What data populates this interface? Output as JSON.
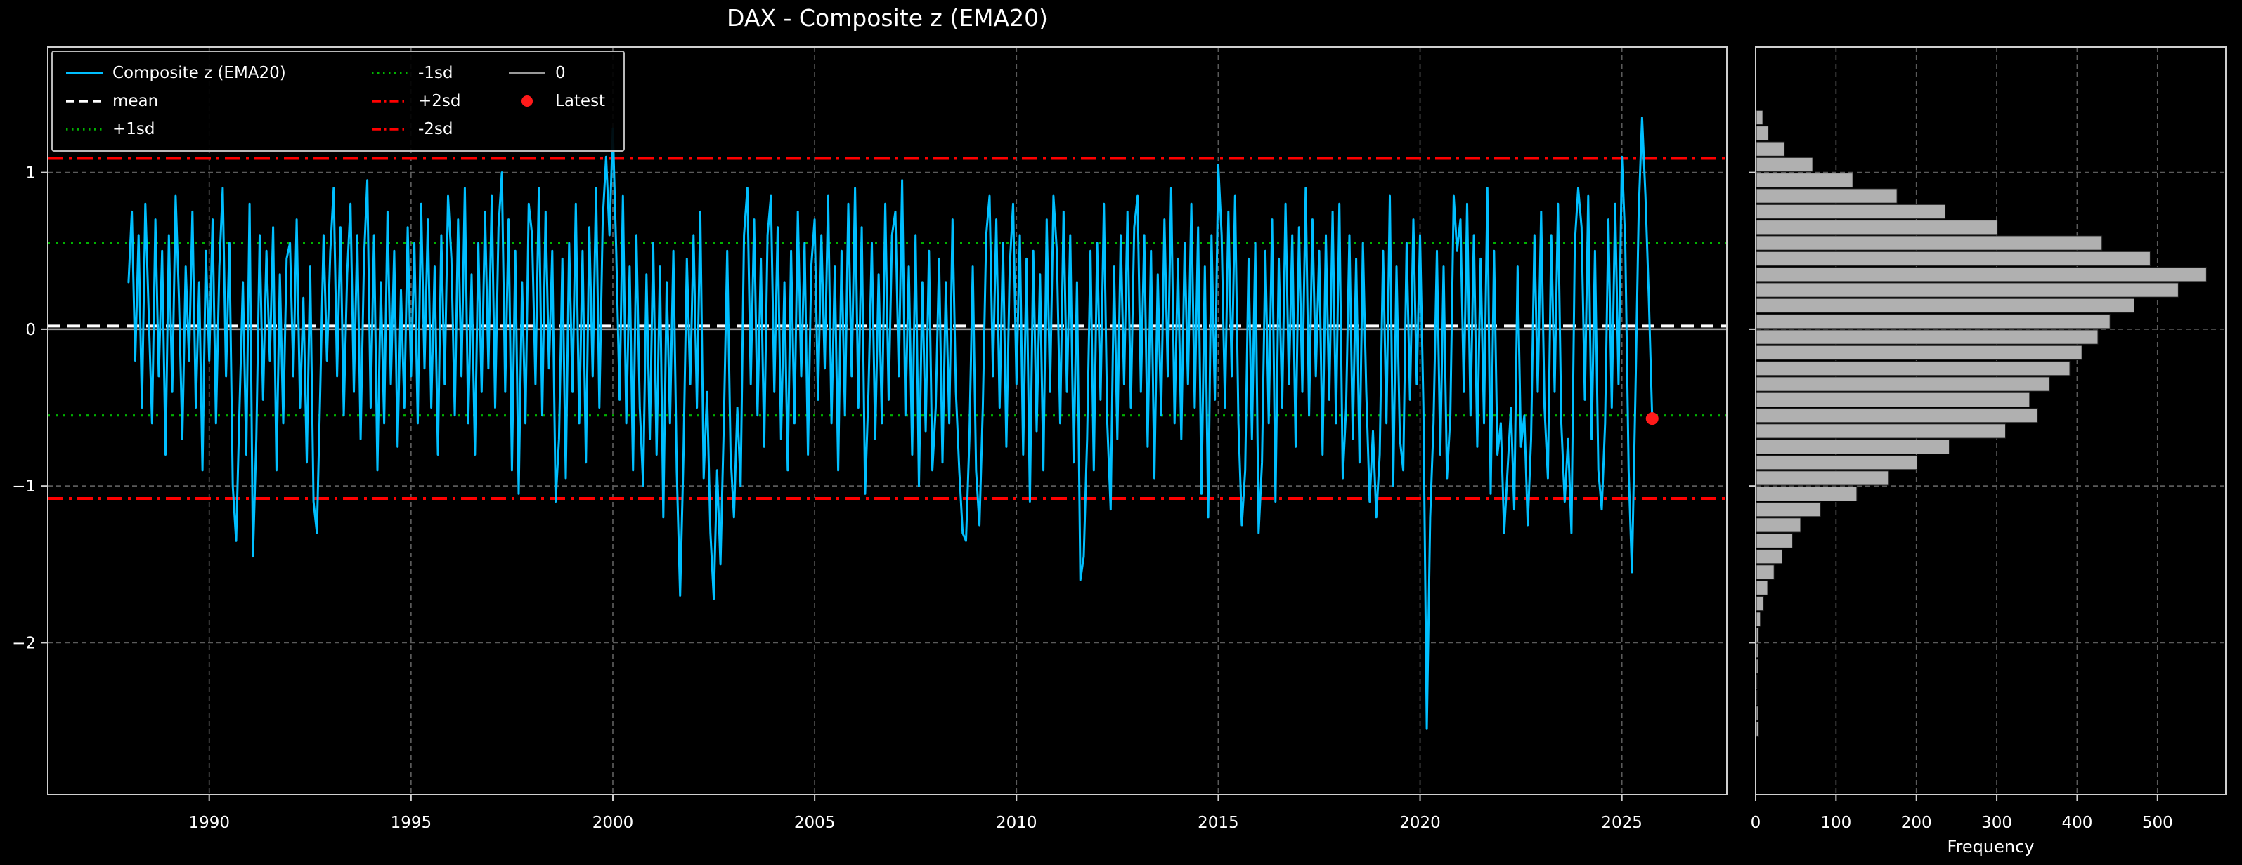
{
  "title": "DAX - Composite z (EMA20)",
  "colors": {
    "background": "#000000",
    "series": "#00BFFF",
    "mean_line": "#ffffff",
    "sd1_line": "#00b300",
    "sd2_line": "#ff0000",
    "zero_line": "#999999",
    "latest_marker": "#ff1a1a",
    "histogram_bar": "#b0b0b0",
    "grid": "#5a5a5a",
    "axis_frame": "#cfcfcf",
    "text": "#ffffff"
  },
  "legend": {
    "items": [
      {
        "label": "Composite z (EMA20)",
        "color": "#00BFFF",
        "style": "solid",
        "lw": 4
      },
      {
        "label": "mean",
        "color": "#ffffff",
        "style": "dashed",
        "lw": 3.5
      },
      {
        "label": "+1sd",
        "color": "#00b300",
        "style": "dotted",
        "lw": 3.5
      },
      {
        "label": "-1sd",
        "color": "#00b300",
        "style": "dotted",
        "lw": 3.5
      },
      {
        "label": "+2sd",
        "color": "#ff0000",
        "style": "dashdot",
        "lw": 3.5
      },
      {
        "label": "-2sd",
        "color": "#ff0000",
        "style": "dashdot",
        "lw": 3.5
      },
      {
        "label": "0",
        "color": "#999999",
        "style": "solid",
        "lw": 2.5
      },
      {
        "label": "Latest",
        "color": "#ff1a1a",
        "style": "marker"
      }
    ],
    "columns": [
      [
        0,
        1,
        2
      ],
      [
        3,
        4,
        5
      ],
      [
        6,
        7
      ]
    ]
  },
  "chart_data": [
    {
      "type": "line",
      "title": "DAX - Composite z (EMA20)",
      "xlabel": "",
      "ylabel": "",
      "xlim": [
        1986.0,
        2027.6
      ],
      "ylim": [
        -2.97,
        1.8
      ],
      "xticks": [
        1990,
        1995,
        2000,
        2005,
        2010,
        2015,
        2020,
        2025
      ],
      "yticks": [
        1,
        0,
        -1,
        -2
      ],
      "grid": true,
      "legend_position": "upper left",
      "reference_lines": [
        {
          "name": "mean",
          "value": 0.02,
          "color": "#ffffff",
          "style": "dashed"
        },
        {
          "name": "+1sd",
          "value": 0.55,
          "color": "#00b300",
          "style": "dotted"
        },
        {
          "name": "-1sd",
          "value": -0.55,
          "color": "#00b300",
          "style": "dotted"
        },
        {
          "name": "+2sd",
          "value": 1.09,
          "color": "#ff0000",
          "style": "dashdot"
        },
        {
          "name": "-2sd",
          "value": -1.08,
          "color": "#ff0000",
          "style": "dashdot"
        },
        {
          "name": "0",
          "value": 0.0,
          "color": "#999999",
          "style": "solid"
        }
      ],
      "latest_point": {
        "x": 2025.75,
        "y": -0.57,
        "color": "#ff1a1a"
      },
      "series": [
        {
          "name": "Composite z (EMA20)",
          "color": "#00BFFF",
          "x_start": 1988.0,
          "x_step_years": 0.0833333,
          "y": [
            0.3,
            0.75,
            -0.2,
            0.6,
            -0.5,
            0.8,
            0.1,
            -0.6,
            0.7,
            -0.3,
            0.5,
            -0.8,
            0.6,
            -0.4,
            0.85,
            0.2,
            -0.7,
            0.4,
            -0.2,
            0.75,
            -0.5,
            0.3,
            -0.9,
            0.5,
            -0.2,
            0.7,
            -0.6,
            0.4,
            0.9,
            -0.3,
            0.55,
            -1.0,
            -1.35,
            -0.5,
            0.3,
            -0.8,
            0.8,
            -1.45,
            -0.7,
            0.6,
            -0.45,
            0.5,
            -0.2,
            0.65,
            -0.9,
            0.35,
            -0.6,
            0.45,
            0.55,
            -0.3,
            0.7,
            -0.5,
            0.2,
            -0.85,
            0.4,
            -1.1,
            -1.3,
            -0.4,
            0.6,
            -0.2,
            0.5,
            0.9,
            -0.3,
            0.65,
            -0.55,
            0.35,
            0.8,
            -0.4,
            0.6,
            -0.7,
            0.45,
            0.95,
            -0.5,
            0.6,
            -0.9,
            0.3,
            -0.6,
            0.75,
            -0.35,
            0.5,
            -0.75,
            0.25,
            -0.5,
            0.65,
            -0.3,
            0.55,
            -0.6,
            0.8,
            -0.25,
            0.7,
            -0.5,
            0.4,
            -0.8,
            0.6,
            -0.35,
            0.85,
            0.45,
            -0.55,
            0.7,
            -0.3,
            0.9,
            -0.6,
            0.35,
            -0.8,
            0.55,
            -0.4,
            0.75,
            -0.25,
            0.85,
            -0.5,
            0.65,
            1.0,
            -0.4,
            0.7,
            -0.9,
            0.5,
            -1.05,
            0.3,
            -0.6,
            0.8,
            0.6,
            -0.35,
            0.9,
            -0.55,
            0.75,
            -0.25,
            0.5,
            -1.1,
            -0.7,
            0.45,
            -0.95,
            0.55,
            -0.4,
            0.8,
            -0.6,
            0.5,
            -0.85,
            0.65,
            -0.3,
            0.9,
            -0.5,
            0.7,
            1.1,
            0.6,
            1.28,
            0.5,
            -0.45,
            0.85,
            -0.6,
            0.4,
            -0.9,
            0.6,
            -0.5,
            -1.0,
            0.35,
            -0.7,
            0.55,
            -0.8,
            0.4,
            -1.2,
            0.3,
            -0.6,
            0.5,
            -0.9,
            -1.7,
            -0.8,
            0.45,
            -0.35,
            0.6,
            -0.5,
            0.75,
            -0.95,
            -0.4,
            -1.3,
            -1.72,
            -0.9,
            -1.5,
            -0.6,
            0.5,
            -0.8,
            -1.2,
            -0.5,
            -1.0,
            0.6,
            0.9,
            -0.35,
            0.7,
            -0.55,
            0.45,
            -0.75,
            0.6,
            0.85,
            -0.4,
            0.65,
            -0.7,
            0.3,
            -0.9,
            0.5,
            -0.6,
            0.75,
            -0.3,
            0.55,
            -0.8,
            0.4,
            0.7,
            -0.45,
            0.6,
            -0.25,
            0.85,
            -0.6,
            0.4,
            -0.9,
            0.5,
            -0.55,
            0.8,
            -0.3,
            0.9,
            -0.5,
            0.65,
            -1.05,
            -0.4,
            0.55,
            -0.7,
            0.35,
            -0.6,
            0.8,
            -0.45,
            0.6,
            0.75,
            -0.3,
            0.95,
            -0.55,
            0.4,
            -0.8,
            0.6,
            -1.0,
            0.3,
            -0.65,
            0.5,
            -0.9,
            -0.5,
            0.45,
            -0.85,
            0.3,
            -0.6,
            0.7,
            -0.4,
            -0.9,
            -1.3,
            -1.35,
            -0.7,
            0.4,
            -0.9,
            -1.25,
            -0.5,
            0.6,
            0.85,
            -0.3,
            0.7,
            -0.5,
            0.55,
            -0.75,
            0.4,
            0.8,
            -0.35,
            0.6,
            -0.8,
            0.45,
            -1.1,
            0.5,
            -0.65,
            0.35,
            -0.9,
            0.7,
            -0.4,
            0.85,
            0.5,
            -0.6,
            0.75,
            -0.4,
            0.6,
            -0.85,
            0.3,
            -1.6,
            -1.45,
            -0.7,
            0.5,
            -0.9,
            0.55,
            -0.45,
            0.8,
            -0.6,
            -1.15,
            0.4,
            -0.7,
            0.6,
            -0.35,
            0.75,
            -0.5,
            0.65,
            0.85,
            -0.4,
            0.6,
            -0.75,
            0.5,
            -0.95,
            0.35,
            -0.55,
            0.7,
            -0.3,
            0.9,
            -0.6,
            0.45,
            -0.7,
            0.55,
            -0.35,
            0.8,
            -0.5,
            0.65,
            -1.05,
            0.4,
            -1.2,
            0.6,
            -0.45,
            1.05,
            0.6,
            -0.5,
            0.75,
            -0.3,
            0.85,
            -0.6,
            -1.25,
            -0.9,
            0.45,
            -0.7,
            0.55,
            -1.3,
            -0.85,
            0.5,
            -0.6,
            0.7,
            -1.1,
            0.45,
            -0.5,
            0.8,
            -0.35,
            0.6,
            -0.75,
            0.65,
            -0.4,
            0.9,
            -0.55,
            0.7,
            -0.3,
            0.5,
            -0.8,
            0.6,
            -0.45,
            0.75,
            -0.6,
            0.8,
            -0.95,
            -0.5,
            0.6,
            -0.7,
            0.45,
            -0.85,
            0.55,
            -0.4,
            -1.1,
            -0.65,
            -1.2,
            -0.8,
            0.5,
            -0.6,
            0.85,
            -1.0,
            0.4,
            -0.7,
            -0.9,
            0.55,
            -0.45,
            0.7,
            -0.35,
            0.6,
            -0.5,
            -2.55,
            -1.2,
            -0.6,
            0.5,
            -0.8,
            0.4,
            -0.95,
            -0.55,
            0.85,
            0.5,
            0.7,
            -0.4,
            0.8,
            -0.55,
            0.6,
            -0.75,
            0.45,
            -0.6,
            0.9,
            -1.05,
            0.5,
            -0.8,
            -0.6,
            -1.3,
            -0.9,
            -0.5,
            -1.15,
            0.4,
            -0.75,
            -0.55,
            -1.25,
            -0.7,
            0.6,
            -0.4,
            0.75,
            -0.5,
            -0.95,
            0.6,
            -0.4,
            0.8,
            -0.6,
            -1.1,
            -0.7,
            -1.3,
            0.55,
            0.9,
            0.65,
            -0.45,
            0.85,
            -0.7,
            0.5,
            -0.9,
            -1.15,
            -0.6,
            0.7,
            -0.5,
            0.8,
            -0.35,
            1.1,
            0.55,
            -0.9,
            -1.55,
            -0.45,
            0.75,
            1.35,
            0.85,
            0.2,
            -0.57
          ]
        }
      ]
    },
    {
      "type": "bar",
      "orientation": "horizontal",
      "xlabel": "Frequency",
      "xlim": [
        0,
        585
      ],
      "xticks": [
        0,
        100,
        200,
        300,
        400,
        500
      ],
      "bar_color": "#b0b0b0",
      "bin_width": 0.1,
      "bin_centers": [
        1.35,
        1.25,
        1.15,
        1.05,
        0.95,
        0.85,
        0.75,
        0.65,
        0.55,
        0.45,
        0.35,
        0.25,
        0.15,
        0.05,
        -0.05,
        -0.15,
        -0.25,
        -0.35,
        -0.45,
        -0.55,
        -0.65,
        -0.75,
        -0.85,
        -0.95,
        -1.05,
        -1.15,
        -1.25,
        -1.35,
        -1.45,
        -1.55,
        -1.65,
        -1.75,
        -1.85,
        -1.95,
        -2.05,
        -2.15,
        -2.25,
        -2.35,
        -2.45,
        -2.55
      ],
      "values": [
        8,
        15,
        35,
        70,
        120,
        175,
        235,
        300,
        430,
        490,
        560,
        525,
        470,
        440,
        425,
        405,
        390,
        365,
        340,
        350,
        310,
        240,
        200,
        165,
        125,
        80,
        55,
        45,
        32,
        22,
        14,
        9,
        5,
        3,
        2,
        2,
        1,
        1,
        2,
        3
      ]
    }
  ]
}
